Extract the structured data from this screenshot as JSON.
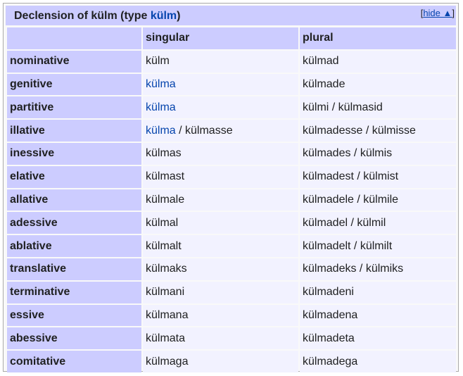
{
  "header": {
    "title_prefix": "Declension of külm (type ",
    "title_type": "külm",
    "title_suffix": ")",
    "toggle_open": "[",
    "toggle_label": "hide ▲",
    "toggle_close": "]"
  },
  "columns": {
    "singular": "singular",
    "plural": "plural"
  },
  "rows": [
    {
      "case": "nominative",
      "singular": "külm",
      "plural": "külmad"
    },
    {
      "case": "genitive",
      "singular": "külma",
      "plural": "külmade"
    },
    {
      "case": "partitive",
      "singular": "külma",
      "plural": "külmi / külmasid"
    },
    {
      "case": "illative",
      "singular_main": "külma",
      "singular_alt": " / külmasse",
      "plural": "külmadesse / külmisse"
    },
    {
      "case": "inessive",
      "singular": "külmas",
      "plural": "külmades / külmis"
    },
    {
      "case": "elative",
      "singular": "külmast",
      "plural": "külmadest / külmist"
    },
    {
      "case": "allative",
      "singular": "külmale",
      "plural": "külmadele / külmile"
    },
    {
      "case": "adessive",
      "singular": "külmal",
      "plural": "külmadel / külmil"
    },
    {
      "case": "ablative",
      "singular": "külmalt",
      "plural": "külmadelt / külmilt"
    },
    {
      "case": "translative",
      "singular": "külmaks",
      "plural": "külmadeks / külmiks"
    },
    {
      "case": "terminative",
      "singular": "külmani",
      "plural": "külmadeni"
    },
    {
      "case": "essive",
      "singular": "külmana",
      "plural": "külmadena"
    },
    {
      "case": "abessive",
      "singular": "külmata",
      "plural": "külmadeta"
    },
    {
      "case": "comitative",
      "singular": "külmaga",
      "plural": "külmadega"
    }
  ],
  "colors": {
    "header_bg": "#ccccff",
    "cell_bg": "#f2f2ff",
    "link": "#0645ad"
  }
}
